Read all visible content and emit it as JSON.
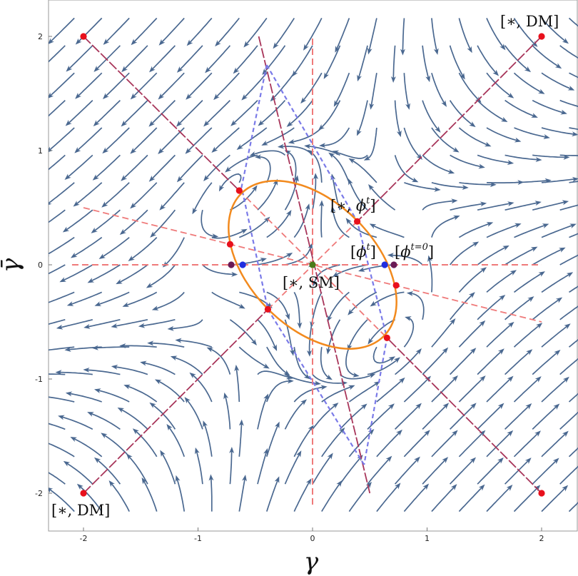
{
  "chart_data": {
    "type": "streamplot",
    "title": "",
    "xlabel": "γ",
    "ylabel": "γ̄",
    "xlim": [
      -2.3,
      2.3
    ],
    "ylim": [
      -2.35,
      2.3
    ],
    "xticks": [
      -2,
      -1,
      0,
      1,
      2
    ],
    "yticks": [
      -2,
      -1,
      0,
      1,
      2
    ],
    "xtick_labels": [
      "-2",
      "-1",
      "0",
      "1",
      "2"
    ],
    "ytick_labels": [
      "-2",
      "-1",
      "0",
      "1",
      "2"
    ],
    "grid": false,
    "colors": {
      "streamlines": "#4a6890",
      "fixed_point_red": "#e8101c",
      "fixed_point_blue": "#1f2ee0",
      "fixed_point_purple": "#6a1a55",
      "fixed_point_green": "#4a7a1a",
      "dashed_red": "#ef7a7a",
      "dashed_blue": "#7a7ae8",
      "ellipse": "#f28a1e",
      "diagonal": "#a8355a"
    },
    "ellipse": {
      "center": [
        0,
        0
      ],
      "semi_axes": [
        0.8,
        0.5
      ],
      "rotation_deg": -45
    },
    "red_points": [
      [
        -2,
        2
      ],
      [
        2,
        2
      ],
      [
        -2,
        -2
      ],
      [
        2,
        -2
      ],
      [
        -0.64,
        0.65
      ],
      [
        0.39,
        0.38
      ],
      [
        -0.72,
        0.18
      ],
      [
        0.73,
        -0.18
      ],
      [
        -0.39,
        -0.39
      ],
      [
        0.65,
        -0.64
      ]
    ],
    "blue_points": [
      [
        -0.61,
        0
      ],
      [
        0.63,
        0
      ]
    ],
    "purple_points": [
      [
        -0.71,
        0
      ],
      [
        0.71,
        0
      ]
    ],
    "green_points": [
      [
        0,
        0
      ]
    ],
    "annotations": [
      {
        "id": "dm-top",
        "text": "[∗, DM]",
        "x": 2,
        "y": 2
      },
      {
        "id": "dm-bottom",
        "text": "[∗, DM]",
        "x": -2,
        "y": -2
      },
      {
        "id": "phi-t-upper",
        "prefix": "[∗, ",
        "base": "ϕ",
        "sup": "t",
        "suffix": "]",
        "x": 0.4,
        "y": 0.4
      },
      {
        "id": "phi-t",
        "prefix": "[",
        "base": "ϕ",
        "sup": "t",
        "suffix": "]",
        "x": 0.45,
        "y": 0.1
      },
      {
        "id": "phi-t0",
        "prefix": "[",
        "base": "ϕ",
        "sup": "t=0",
        "suffix": "]",
        "x": 0.75,
        "y": 0.1
      },
      {
        "id": "sm",
        "text": "[∗, SM]",
        "x": 0,
        "y": 0
      }
    ]
  }
}
